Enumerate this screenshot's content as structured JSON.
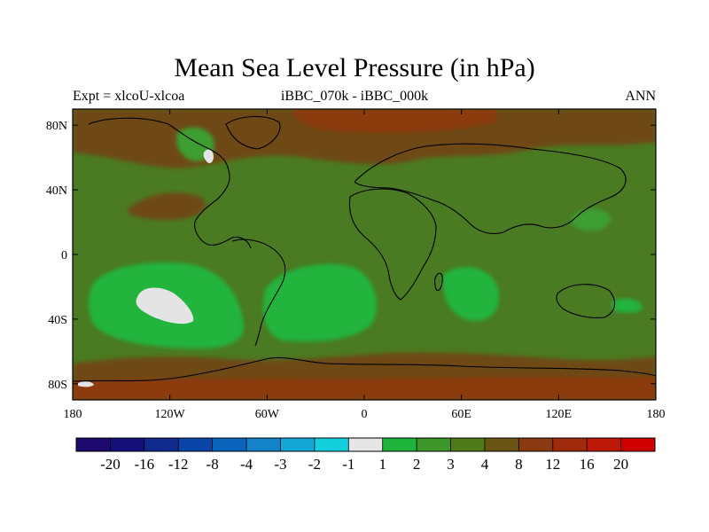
{
  "title": "Mean Sea Level Pressure (in hPa)",
  "subtitle_left": "Expt = xlcoU-xlcoa",
  "subtitle_center": "iBBC_070k - iBBC_000k",
  "subtitle_right": "ANN",
  "map": {
    "lon_range": [
      -180,
      180
    ],
    "lat_range": [
      -90,
      90
    ],
    "x_ticks": [
      {
        "lon": -180,
        "label": "180"
      },
      {
        "lon": -120,
        "label": "120W"
      },
      {
        "lon": -60,
        "label": "60W"
      },
      {
        "lon": 0,
        "label": "0"
      },
      {
        "lon": 60,
        "label": "60E"
      },
      {
        "lon": 120,
        "label": "120E"
      },
      {
        "lon": 180,
        "label": "180"
      }
    ],
    "y_ticks": [
      {
        "lat": 80,
        "label": "80N"
      },
      {
        "lat": 40,
        "label": "40N"
      },
      {
        "lat": 0,
        "label": "0"
      },
      {
        "lat": -40,
        "label": "40S"
      },
      {
        "lat": -80,
        "label": "80S"
      }
    ]
  },
  "colorbar": {
    "labels": [
      "-20",
      "-16",
      "-12",
      "-8",
      "-4",
      "-3",
      "-2",
      "-1",
      "1",
      "2",
      "3",
      "4",
      "8",
      "12",
      "16",
      "20"
    ],
    "colors": [
      "#1e0a6e",
      "#150f7a",
      "#0f2a8c",
      "#0a46a8",
      "#0a64bc",
      "#1482c8",
      "#14a6d4",
      "#14d0dc",
      "#e6e6e6",
      "#1eb43c",
      "#3c9628",
      "#4e7a1a",
      "#6a5414",
      "#8a3a10",
      "#a02a0c",
      "#bc1808",
      "#d00000"
    ]
  },
  "colors": {
    "base_field": "#4a7a22",
    "high_lat_pos": "#6e4a14",
    "strong_pos": "#8c3a10",
    "moderate_neg": "#3c9e30",
    "bright_neg": "#22b43e",
    "near_zero": "#e4e4e4"
  }
}
